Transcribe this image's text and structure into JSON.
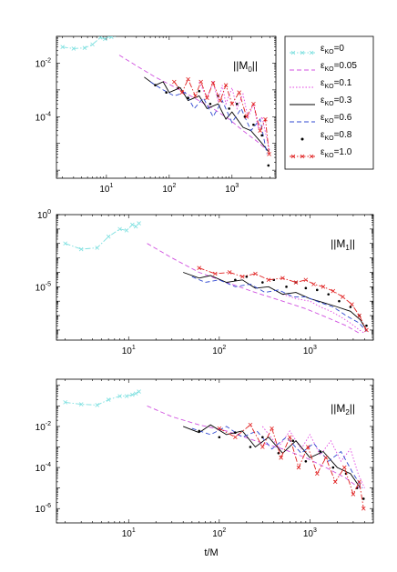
{
  "figure": {
    "xlabel": "t/M"
  },
  "legend": {
    "entries": [
      {
        "label_base": "ε",
        "label_sub": "KO",
        "label_val": "=0",
        "color": "#7fe0e0",
        "style": "dashdot",
        "marker": "x"
      },
      {
        "label_base": "ε",
        "label_sub": "KO",
        "label_val": "=0.05",
        "color": "#d050e0",
        "style": "dashed",
        "marker": "none"
      },
      {
        "label_base": "ε",
        "label_sub": "KO",
        "label_val": "=0.1",
        "color": "#e040e0",
        "style": "dotted",
        "marker": "none"
      },
      {
        "label_base": "ε",
        "label_sub": "KO",
        "label_val": "=0.3",
        "color": "#000000",
        "style": "solid",
        "marker": "none"
      },
      {
        "label_base": "ε",
        "label_sub": "KO",
        "label_val": "=0.6",
        "color": "#3048d0",
        "style": "dashed",
        "marker": "none"
      },
      {
        "label_base": "ε",
        "label_sub": "KO",
        "label_val": "=0.8",
        "color": "#000000",
        "style": "none",
        "marker": "dot"
      },
      {
        "label_base": "ε",
        "label_sub": "KO",
        "label_val": "=1.0",
        "color": "#e02020",
        "style": "dashdot",
        "marker": "x"
      }
    ]
  },
  "chart_data": [
    {
      "type": "line",
      "panel_label": "||M0||",
      "panel_label_parts": {
        "pre": "||M",
        "sub": "0",
        "post": "||"
      },
      "xscale": "log",
      "yscale": "log",
      "xlim": [
        1.6,
        5000
      ],
      "ylim": [
        5e-07,
        0.1
      ],
      "x_ticks": [
        {
          "value": 10,
          "base": "10",
          "exp": "1"
        },
        {
          "value": 100,
          "base": "10",
          "exp": "2"
        },
        {
          "value": 1000,
          "base": "10",
          "exp": "3"
        }
      ],
      "y_ticks": [
        {
          "value": 0.01,
          "base": "10",
          "exp": "-2"
        },
        {
          "value": 0.0001,
          "base": "10",
          "exp": "-4"
        }
      ],
      "series": [
        {
          "name_index": 0,
          "x": [
            2,
            3,
            4.5,
            6,
            8,
            9.5,
            11,
            12,
            13
          ],
          "y": [
            0.04,
            0.035,
            0.037,
            0.05,
            0.09,
            0.08,
            0.1,
            0.095,
            0.11
          ]
        },
        {
          "name_index": 1,
          "x": [
            16,
            30,
            60,
            120,
            250,
            500,
            900,
            1500,
            2500,
            3500
          ],
          "y": [
            0.02,
            0.008,
            0.003,
            0.0013,
            0.0005,
            0.0002,
            8e-05,
            3e-05,
            1.2e-05,
            6e-06
          ]
        },
        {
          "name_index": 2,
          "x": [
            300,
            400,
            500,
            600,
            700,
            800,
            1000,
            1200,
            1500,
            1800,
            2200,
            2600,
            3000,
            3500,
            4000
          ],
          "y": [
            0.002,
            0.0005,
            0.002,
            0.0004,
            0.0015,
            0.0003,
            0.0012,
            0.0002,
            0.0007,
            9e-05,
            0.0003,
            4e-05,
            0.0001,
            2e-05,
            5e-06
          ]
        },
        {
          "name_index": 3,
          "x": [
            40,
            60,
            80,
            100,
            150,
            200,
            300,
            400,
            600,
            800,
            1000,
            1500,
            2000,
            3000,
            3800
          ],
          "y": [
            0.003,
            0.0015,
            0.002,
            0.0008,
            0.0012,
            0.0004,
            0.0006,
            0.0002,
            0.0003,
            8e-05,
            0.00015,
            4e-05,
            3e-05,
            1e-05,
            5e-06
          ]
        },
        {
          "name_index": 4,
          "x": [
            50,
            80,
            120,
            180,
            250,
            350,
            500,
            700,
            1000,
            1400,
            2000,
            2800,
            3600
          ],
          "y": [
            0.002,
            0.001,
            0.0006,
            0.0008,
            0.0002,
            0.0005,
            0.0001,
            0.0004,
            6e-05,
            0.0002,
            3e-05,
            8e-05,
            4e-06
          ]
        },
        {
          "name_index": 5,
          "x": [
            60,
            90,
            140,
            200,
            300,
            450,
            600,
            900,
            1200,
            1600,
            2200,
            3000,
            3800
          ],
          "y": [
            0.0015,
            0.0008,
            0.0012,
            0.0005,
            0.0009,
            0.0003,
            0.0006,
            0.0002,
            0.0003,
            0.0001,
            5e-05,
            2e-05,
            1.5e-06
          ]
        },
        {
          "name_index": 6,
          "x": [
            120,
            160,
            200,
            260,
            320,
            400,
            500,
            650,
            800,
            1000,
            1300,
            1700,
            2200,
            2800,
            3400,
            3900
          ],
          "y": [
            0.002,
            0.0008,
            0.0025,
            0.0006,
            0.002,
            0.0005,
            0.0018,
            0.0004,
            0.0015,
            0.0003,
            0.0008,
            0.0001,
            0.0003,
            3e-05,
            8e-05,
            4e-06
          ]
        }
      ]
    },
    {
      "type": "line",
      "panel_label": "||M1||",
      "panel_label_parts": {
        "pre": "||M",
        "sub": "1",
        "post": "||"
      },
      "xscale": "log",
      "yscale": "log",
      "xlim": [
        1.6,
        5000
      ],
      "ylim": [
        2e-09,
        1
      ],
      "x_ticks": [
        {
          "value": 10,
          "base": "10",
          "exp": "1"
        },
        {
          "value": 100,
          "base": "10",
          "exp": "2"
        },
        {
          "value": 1000,
          "base": "10",
          "exp": "3"
        }
      ],
      "y_ticks": [
        {
          "value": 1,
          "base": "10",
          "exp": "0"
        },
        {
          "value": 1e-05,
          "base": "10",
          "exp": "-5"
        }
      ],
      "series": [
        {
          "name_index": 0,
          "x": [
            2,
            3,
            4.5,
            6,
            8,
            9.5,
            11,
            12,
            13
          ],
          "y": [
            0.01,
            0.004,
            0.005,
            0.03,
            0.1,
            0.08,
            0.2,
            0.15,
            0.25
          ]
        },
        {
          "name_index": 1,
          "x": [
            16,
            30,
            60,
            120,
            250,
            500,
            900,
            1500,
            2500,
            3500
          ],
          "y": [
            0.01,
            0.001,
            0.0001,
            2e-05,
            4e-06,
            1e-06,
            3e-07,
            8e-08,
            2e-08,
            6e-09
          ]
        },
        {
          "name_index": 2,
          "x": [
            500,
            700,
            1000,
            1300,
            1700,
            2200,
            2800,
            3500,
            4000
          ],
          "y": [
            3e-06,
            1.5e-06,
            1e-06,
            4e-07,
            2e-07,
            8e-08,
            3e-08,
            1e-08,
            6e-09
          ]
        },
        {
          "name_index": 3,
          "x": [
            40,
            60,
            80,
            120,
            180,
            250,
            350,
            500,
            700,
            1000,
            1400,
            2000,
            2800,
            3600,
            4200
          ],
          "y": [
            0.0001,
            4e-05,
            6e-05,
            2e-05,
            3e-05,
            8e-06,
            1e-05,
            3e-06,
            4e-06,
            1.5e-06,
            8e-07,
            4e-07,
            2e-07,
            5e-08,
            1e-08
          ]
        },
        {
          "name_index": 4,
          "x": [
            50,
            70,
            100,
            150,
            220,
            320,
            450,
            650,
            900,
            1300,
            1800,
            2500,
            3500,
            4200
          ],
          "y": [
            5e-05,
            2e-05,
            3e-05,
            1e-05,
            1.5e-05,
            4e-06,
            6e-06,
            2e-06,
            2e-06,
            8e-07,
            4e-07,
            1e-07,
            3e-08,
            8e-09
          ]
        },
        {
          "name_index": 5,
          "x": [
            150,
            200,
            300,
            400,
            550,
            700,
            900,
            1200,
            1600,
            2100,
            2800,
            3500,
            4200
          ],
          "y": [
            3e-05,
            5e-05,
            2e-05,
            3e-05,
            1e-05,
            2e-05,
            8e-06,
            6e-06,
            3e-06,
            1e-06,
            4e-07,
            1e-07,
            2e-08
          ]
        },
        {
          "name_index": 6,
          "x": [
            60,
            90,
            130,
            180,
            250,
            350,
            500,
            700,
            900,
            1100,
            1400,
            1800,
            2300,
            2900,
            3500,
            4200
          ],
          "y": [
            0.0002,
            8e-05,
            0.0001,
            5e-05,
            8e-05,
            3e-05,
            4e-05,
            2e-05,
            3e-05,
            1.5e-05,
            1e-05,
            5e-06,
            2e-06,
            6e-07,
            1e-07,
            1e-08
          ]
        }
      ]
    },
    {
      "type": "line",
      "panel_label": "||M2||",
      "panel_label_parts": {
        "pre": "||M",
        "sub": "2",
        "post": "||"
      },
      "xscale": "log",
      "yscale": "log",
      "xlim": [
        1.6,
        5000
      ],
      "ylim": [
        2e-07,
        2
      ],
      "x_ticks": [
        {
          "value": 10,
          "base": "10",
          "exp": "1"
        },
        {
          "value": 100,
          "base": "10",
          "exp": "2"
        },
        {
          "value": 1000,
          "base": "10",
          "exp": "3"
        }
      ],
      "y_ticks": [
        {
          "value": 0.01,
          "base": "10",
          "exp": "-2"
        },
        {
          "value": 0.0001,
          "base": "10",
          "exp": "-4"
        },
        {
          "value": 1e-06,
          "base": "10",
          "exp": "-6"
        }
      ],
      "series": [
        {
          "name_index": 0,
          "x": [
            2,
            3,
            4.5,
            6,
            8,
            9.5,
            11,
            12,
            13
          ],
          "y": [
            0.15,
            0.12,
            0.11,
            0.2,
            0.3,
            0.3,
            0.35,
            0.4,
            0.5
          ]
        },
        {
          "name_index": 1,
          "x": [
            16,
            30,
            60,
            120,
            250,
            500,
            900,
            1500,
            2500,
            3500
          ],
          "y": [
            0.1,
            0.03,
            0.012,
            0.006,
            0.002,
            0.0008,
            0.0003,
            0.0001,
            3e-05,
            1e-05
          ]
        },
        {
          "name_index": 2,
          "x": [
            300,
            450,
            600,
            800,
            1000,
            1300,
            1700,
            2200,
            2800,
            3400,
            4000
          ],
          "y": [
            0.01,
            0.001,
            0.006,
            0.0008,
            0.004,
            0.0004,
            0.002,
            0.0002,
            0.0008,
            5e-05,
            1e-05
          ]
        },
        {
          "name_index": 3,
          "x": [
            40,
            60,
            80,
            120,
            180,
            250,
            350,
            500,
            700,
            1000,
            1400,
            2000,
            2800,
            3600
          ],
          "y": [
            0.01,
            0.005,
            0.012,
            0.004,
            0.006,
            0.001,
            0.003,
            0.0005,
            0.002,
            0.0003,
            0.0006,
            0.0001,
            5e-05,
            1e-05
          ]
        },
        {
          "name_index": 4,
          "x": [
            50,
            80,
            120,
            180,
            260,
            380,
            550,
            800,
            1100,
            1600,
            2200,
            3000,
            3800
          ],
          "y": [
            0.008,
            0.004,
            0.01,
            0.003,
            0.006,
            0.0008,
            0.003,
            0.0005,
            0.0015,
            0.0002,
            0.0006,
            5e-05,
            1e-05
          ]
        },
        {
          "name_index": 5,
          "x": [
            60,
            100,
            150,
            220,
            300,
            450,
            650,
            900,
            1300,
            1800,
            2500,
            3300,
            3900
          ],
          "y": [
            0.006,
            0.003,
            0.005,
            0.001,
            0.003,
            0.0005,
            0.002,
            0.0002,
            0.0006,
            0.0001,
            5e-05,
            1e-05,
            3e-06
          ]
        },
        {
          "name_index": 6,
          "x": [
            100,
            150,
            220,
            300,
            380,
            480,
            600,
            750,
            950,
            1200,
            1500,
            1900,
            2400,
            3000,
            3500,
            3900
          ],
          "y": [
            0.008,
            0.003,
            0.012,
            0.001,
            0.008,
            0.0003,
            0.003,
            0.0001,
            0.001,
            5e-05,
            0.0003,
            2e-05,
            0.0001,
            5e-06,
            2e-05,
            1e-06
          ]
        }
      ]
    }
  ]
}
